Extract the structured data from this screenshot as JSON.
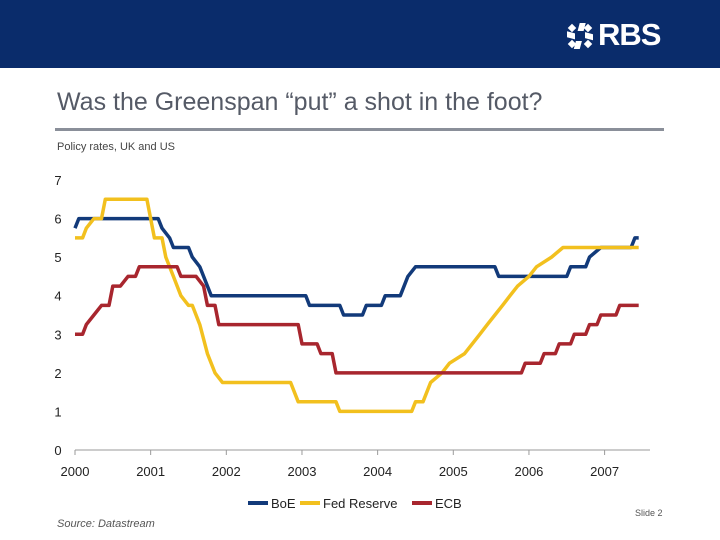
{
  "header": {
    "logo_text": "RBS",
    "logo_icon": "rbs-daisy-wheel-icon",
    "bar_color": "#0a2c6b"
  },
  "title": "Was the Greenspan “put” a shot in the foot?",
  "subtitle": "Policy rates, UK and US",
  "footer": {
    "source": "Source: Datastream",
    "slide": "Slide 2"
  },
  "chart_data": {
    "type": "line",
    "title": "",
    "xlabel": "",
    "ylabel": "",
    "ylim": [
      0,
      7
    ],
    "xlim": [
      2000,
      2007.6
    ],
    "yticks": [
      0,
      1,
      2,
      3,
      4,
      5,
      6,
      7
    ],
    "xticks": [
      2000,
      2001,
      2002,
      2003,
      2004,
      2005,
      2006,
      2007
    ],
    "grid": false,
    "legend": "bottom",
    "series": [
      {
        "name": "BoE",
        "color": "#123a7a",
        "points": [
          [
            2000.0,
            5.75
          ],
          [
            2000.05,
            6.0
          ],
          [
            2000.2,
            6.0
          ],
          [
            2001.1,
            6.0
          ],
          [
            2001.15,
            5.75
          ],
          [
            2001.25,
            5.5
          ],
          [
            2001.3,
            5.25
          ],
          [
            2001.5,
            5.25
          ],
          [
            2001.55,
            5.0
          ],
          [
            2001.65,
            4.75
          ],
          [
            2001.7,
            4.5
          ],
          [
            2001.8,
            4.0
          ],
          [
            2003.05,
            4.0
          ],
          [
            2003.1,
            3.75
          ],
          [
            2003.5,
            3.75
          ],
          [
            2003.55,
            3.5
          ],
          [
            2003.8,
            3.5
          ],
          [
            2003.85,
            3.75
          ],
          [
            2004.05,
            3.75
          ],
          [
            2004.1,
            4.0
          ],
          [
            2004.3,
            4.0
          ],
          [
            2004.4,
            4.5
          ],
          [
            2004.5,
            4.75
          ],
          [
            2005.55,
            4.75
          ],
          [
            2005.6,
            4.5
          ],
          [
            2006.5,
            4.5
          ],
          [
            2006.55,
            4.75
          ],
          [
            2006.75,
            4.75
          ],
          [
            2006.8,
            5.0
          ],
          [
            2006.95,
            5.25
          ],
          [
            2007.35,
            5.25
          ],
          [
            2007.4,
            5.5
          ],
          [
            2007.45,
            5.5
          ]
        ]
      },
      {
        "name": "Fed Reserve",
        "color": "#f2c01e",
        "points": [
          [
            2000.0,
            5.5
          ],
          [
            2000.1,
            5.5
          ],
          [
            2000.15,
            5.75
          ],
          [
            2000.25,
            6.0
          ],
          [
            2000.35,
            6.0
          ],
          [
            2000.4,
            6.5
          ],
          [
            2000.95,
            6.5
          ],
          [
            2001.05,
            5.5
          ],
          [
            2001.15,
            5.5
          ],
          [
            2001.2,
            5.0
          ],
          [
            2001.3,
            4.5
          ],
          [
            2001.4,
            4.0
          ],
          [
            2001.5,
            3.75
          ],
          [
            2001.55,
            3.75
          ],
          [
            2001.65,
            3.25
          ],
          [
            2001.75,
            2.5
          ],
          [
            2001.85,
            2.0
          ],
          [
            2001.95,
            1.75
          ],
          [
            2002.85,
            1.75
          ],
          [
            2002.95,
            1.25
          ],
          [
            2003.45,
            1.25
          ],
          [
            2003.5,
            1.0
          ],
          [
            2004.45,
            1.0
          ],
          [
            2004.5,
            1.25
          ],
          [
            2004.6,
            1.25
          ],
          [
            2004.7,
            1.75
          ],
          [
            2004.85,
            2.0
          ],
          [
            2004.95,
            2.25
          ],
          [
            2005.15,
            2.5
          ],
          [
            2005.25,
            2.75
          ],
          [
            2005.35,
            3.0
          ],
          [
            2005.45,
            3.25
          ],
          [
            2005.55,
            3.5
          ],
          [
            2005.65,
            3.75
          ],
          [
            2005.75,
            4.0
          ],
          [
            2005.85,
            4.25
          ],
          [
            2006.0,
            4.5
          ],
          [
            2006.1,
            4.75
          ],
          [
            2006.3,
            5.0
          ],
          [
            2006.45,
            5.25
          ],
          [
            2007.45,
            5.25
          ]
        ]
      },
      {
        "name": "ECB",
        "color": "#a8262e",
        "points": [
          [
            2000.0,
            3.0
          ],
          [
            2000.1,
            3.0
          ],
          [
            2000.15,
            3.25
          ],
          [
            2000.25,
            3.5
          ],
          [
            2000.35,
            3.75
          ],
          [
            2000.45,
            3.75
          ],
          [
            2000.5,
            4.25
          ],
          [
            2000.6,
            4.25
          ],
          [
            2000.7,
            4.5
          ],
          [
            2000.8,
            4.5
          ],
          [
            2000.85,
            4.75
          ],
          [
            2001.35,
            4.75
          ],
          [
            2001.4,
            4.5
          ],
          [
            2001.6,
            4.5
          ],
          [
            2001.7,
            4.25
          ],
          [
            2001.75,
            3.75
          ],
          [
            2001.85,
            3.75
          ],
          [
            2001.9,
            3.25
          ],
          [
            2002.95,
            3.25
          ],
          [
            2003.0,
            2.75
          ],
          [
            2003.2,
            2.75
          ],
          [
            2003.25,
            2.5
          ],
          [
            2003.4,
            2.5
          ],
          [
            2003.45,
            2.0
          ],
          [
            2005.9,
            2.0
          ],
          [
            2005.95,
            2.25
          ],
          [
            2006.15,
            2.25
          ],
          [
            2006.2,
            2.5
          ],
          [
            2006.35,
            2.5
          ],
          [
            2006.4,
            2.75
          ],
          [
            2006.55,
            2.75
          ],
          [
            2006.6,
            3.0
          ],
          [
            2006.75,
            3.0
          ],
          [
            2006.8,
            3.25
          ],
          [
            2006.9,
            3.25
          ],
          [
            2006.95,
            3.5
          ],
          [
            2007.15,
            3.5
          ],
          [
            2007.2,
            3.75
          ],
          [
            2007.45,
            3.75
          ]
        ]
      }
    ]
  }
}
